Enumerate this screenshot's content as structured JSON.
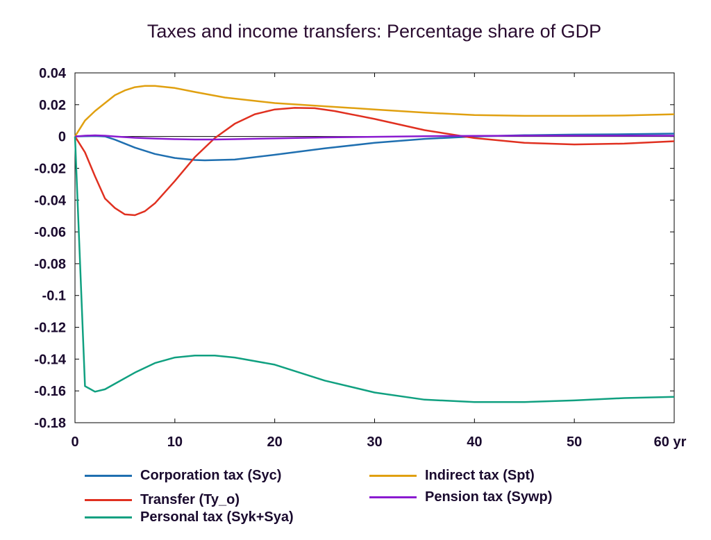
{
  "chart_data": {
    "type": "line",
    "title": "Taxes and income transfers: Percentage share of GDP",
    "xlabel": "",
    "ylabel": "",
    "xlim": [
      0,
      60
    ],
    "ylim": [
      -0.18,
      0.04
    ],
    "x_ticks": [
      "0",
      "10",
      "20",
      "30",
      "40",
      "50",
      "60 yr"
    ],
    "y_ticks": [
      "0.04",
      "0.02",
      "0",
      "-0.02",
      "-0.04",
      "-0.06",
      "-0.08",
      "-0.1",
      "-0.12",
      "-0.14",
      "-0.16",
      "-0.18"
    ],
    "grid": false,
    "legend_position": "bottom",
    "series": [
      {
        "name": "Corporation tax (Syc)",
        "color": "#1f6fb0",
        "x": [
          0,
          1,
          2,
          3,
          4,
          6,
          8,
          10,
          12,
          13,
          16,
          20,
          25,
          30,
          35,
          40,
          45,
          50,
          55,
          60
        ],
        "y": [
          0,
          0.0002,
          0.0003,
          0,
          -0.002,
          -0.007,
          -0.011,
          -0.0135,
          -0.0148,
          -0.015,
          -0.0145,
          -0.0115,
          -0.0075,
          -0.004,
          -0.0015,
          0,
          0.0008,
          0.0012,
          0.0014,
          0.0018
        ]
      },
      {
        "name": "Indirect tax (Spt)",
        "color": "#e0a010",
        "x": [
          0,
          1,
          2,
          3,
          4,
          5,
          6,
          7,
          8,
          10,
          12,
          15,
          20,
          25,
          30,
          35,
          40,
          45,
          50,
          55,
          60
        ],
        "y": [
          0,
          0.01,
          0.016,
          0.021,
          0.026,
          0.029,
          0.031,
          0.0318,
          0.0318,
          0.0305,
          0.028,
          0.0245,
          0.021,
          0.019,
          0.017,
          0.015,
          0.0135,
          0.013,
          0.013,
          0.0132,
          0.014
        ]
      },
      {
        "name": "Transfer (Ty_o)",
        "color": "#e03020",
        "x": [
          0,
          1,
          2,
          3,
          4,
          5,
          6,
          7,
          8,
          10,
          12,
          14,
          16,
          18,
          20,
          22,
          24,
          26,
          30,
          35,
          40,
          45,
          50,
          55,
          60
        ],
        "y": [
          0,
          -0.01,
          -0.025,
          -0.039,
          -0.045,
          -0.049,
          -0.0495,
          -0.047,
          -0.042,
          -0.028,
          -0.013,
          -0.001,
          0.008,
          0.014,
          0.017,
          0.018,
          0.0178,
          0.016,
          0.011,
          0.004,
          -0.001,
          -0.004,
          -0.005,
          -0.0045,
          -0.003
        ]
      },
      {
        "name": "Pension tax (Sywp)",
        "color": "#8a1ad0",
        "x": [
          0,
          1,
          2,
          3,
          4,
          6,
          8,
          10,
          12,
          14,
          16,
          20,
          25,
          30,
          35,
          40,
          45,
          50,
          55,
          60
        ],
        "y": [
          0,
          0.0005,
          0.0007,
          0.0005,
          0,
          -0.0008,
          -0.0013,
          -0.0017,
          -0.0019,
          -0.0019,
          -0.0017,
          -0.0012,
          -0.0006,
          -0.0002,
          0.0002,
          0.0004,
          0.0005,
          0.0005,
          0.0005,
          0.0005
        ]
      },
      {
        "name": "Personal tax (Syk+Sya)",
        "color": "#10a080",
        "x": [
          0,
          1,
          2,
          3,
          4,
          6,
          8,
          10,
          12,
          14,
          16,
          20,
          25,
          30,
          35,
          40,
          45,
          50,
          55,
          60
        ],
        "y": [
          0,
          -0.157,
          -0.1605,
          -0.159,
          -0.1555,
          -0.1485,
          -0.1425,
          -0.139,
          -0.1378,
          -0.1378,
          -0.139,
          -0.1435,
          -0.1535,
          -0.161,
          -0.1655,
          -0.167,
          -0.167,
          -0.166,
          -0.1645,
          -0.1637
        ]
      }
    ]
  }
}
